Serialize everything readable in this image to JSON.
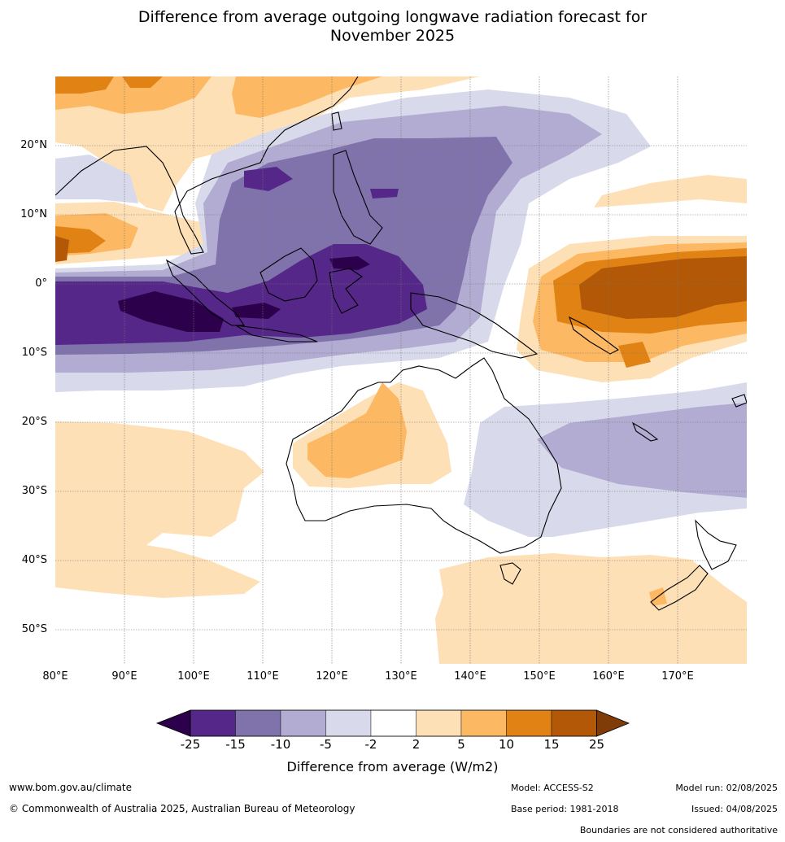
{
  "title": {
    "line1": "Difference from average outgoing longwave radiation forecast for",
    "line2": "November 2025"
  },
  "map": {
    "lat_labels": [
      "20°N",
      "10°N",
      "0°",
      "10°S",
      "20°S",
      "30°S",
      "40°S",
      "50°S"
    ],
    "lon_labels": [
      "80°E",
      "90°E",
      "100°E",
      "110°E",
      "120°E",
      "130°E",
      "140°E",
      "150°E",
      "160°E",
      "170°E"
    ],
    "extent": {
      "lon": [
        80,
        180
      ],
      "lat": [
        -55,
        30
      ]
    }
  },
  "colorbar": {
    "ticks": [
      "-25",
      "-15",
      "-10",
      "-5",
      "-2",
      "2",
      "5",
      "10",
      "15",
      "25"
    ],
    "colors": [
      "#2d004b",
      "#542788",
      "#8073ac",
      "#b2abd2",
      "#d8daeb",
      "#ffffff",
      "#fee0b6",
      "#fdb863",
      "#e08214",
      "#b35806",
      "#7f3b08"
    ],
    "label": "Difference from average (W/m2)"
  },
  "footer": {
    "url": "www.bom.gov.au/climate",
    "copyright": "© Commonwealth of Australia 2025, Australian Bureau of Meteorology",
    "model": "Model: ACCESS-S2",
    "base_period": "Base period: 1981-2018",
    "model_run": "Model run: 02/08/2025",
    "issued": "Issued: 04/08/2025",
    "disclaimer": "Boundaries are not considered authoritative"
  }
}
